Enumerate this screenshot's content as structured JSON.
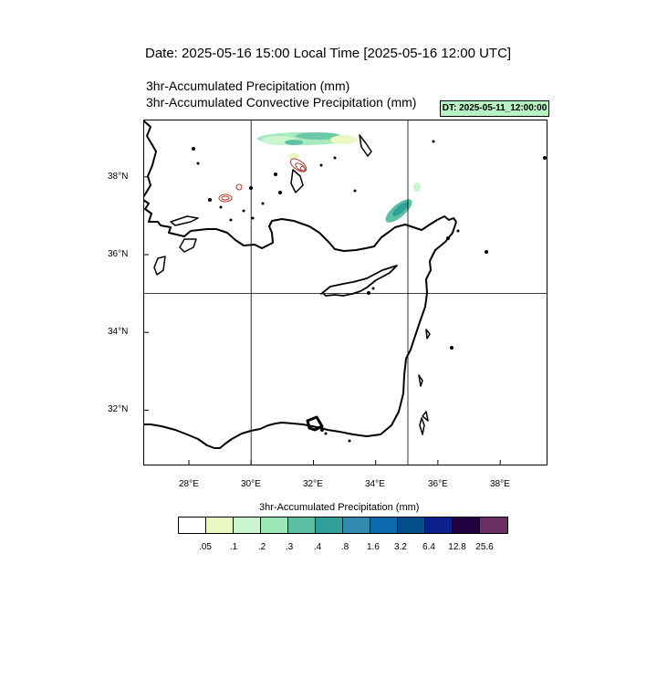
{
  "header": {
    "date_title": "Date: 2025-05-16  15:00 Local Time [2025-05-16  12:00 UTC]",
    "subtitle_1": "3hr-Accumulated Precipitation   (mm)",
    "subtitle_2": "3hr-Accumulated Convective Precipitation   (mm)",
    "dt_badge": "DT: 2025-05-11_12:00:00",
    "dt_badge_color": "#b7f3c2"
  },
  "map": {
    "lat_labels": [
      "38°N",
      "36°N",
      "34°N",
      "32°N"
    ],
    "lon_labels": [
      "28°E",
      "30°E",
      "32°E",
      "34°E",
      "36°E",
      "38°E"
    ],
    "lat_range": [
      30.4,
      39.3
    ],
    "lon_range": [
      26.6,
      39.4
    ],
    "grid_lines": {
      "lon": [
        30,
        35
      ],
      "lat": [
        35
      ]
    }
  },
  "colorbar": {
    "title": "3hr-Accumulated Precipitation   (mm)",
    "colors": [
      "#ffffff",
      "#ecf8c4",
      "#c9f6cf",
      "#9ce8b6",
      "#5cc1a3",
      "#2fa19a",
      "#3288ae",
      "#0c6aaf",
      "#064e8b",
      "#0c1f8c",
      "#200340",
      "#6b2f61"
    ],
    "labels": [
      ".05",
      ".1",
      ".2",
      ".3",
      ".4",
      ".8",
      "1.6",
      "3.2",
      "6.4",
      "12.8",
      "25.6"
    ]
  }
}
